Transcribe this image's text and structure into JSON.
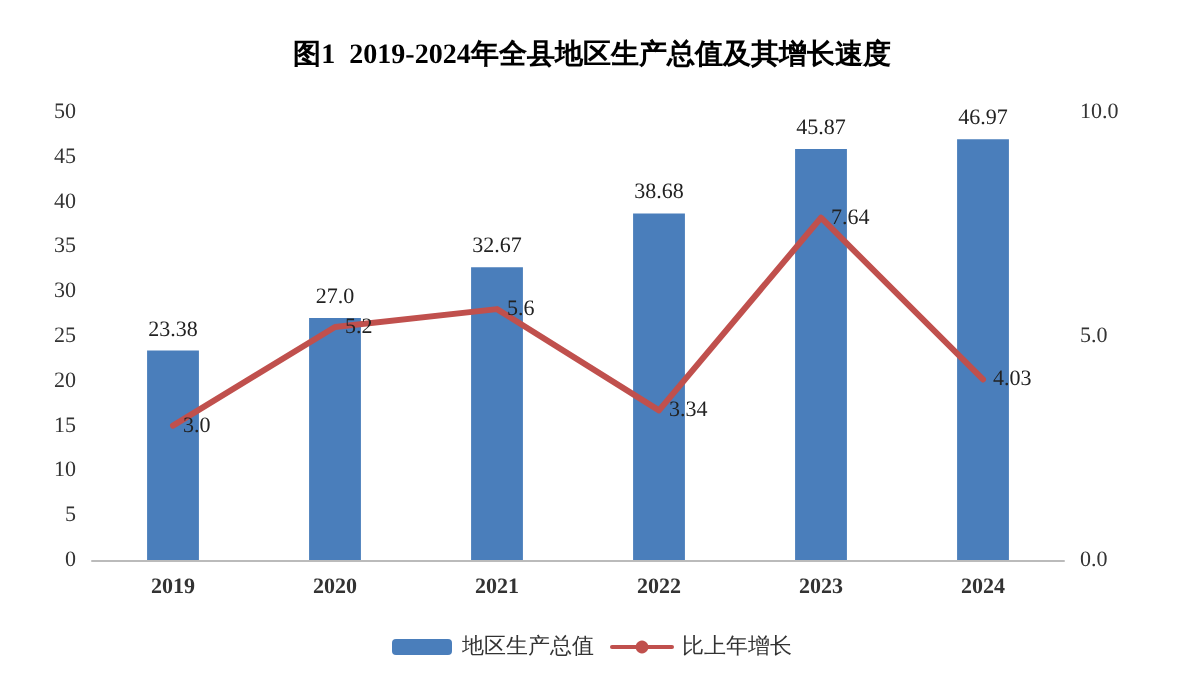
{
  "chart_data": {
    "type": "bar",
    "title": "图1  2019-2024年全县地区生产总值及其增长速度",
    "categories": [
      "2019",
      "2020",
      "2021",
      "2022",
      "2023",
      "2024"
    ],
    "series": [
      {
        "name": "地区生产总值",
        "color": "#4a7ebb",
        "values": [
          23.38,
          27.0,
          32.67,
          38.68,
          45.87,
          46.97
        ],
        "value_labels": [
          "23.38",
          "27.0",
          "32.67",
          "38.68",
          "45.87",
          "46.97"
        ]
      },
      {
        "name": "比上年增长",
        "type": "line",
        "axis": "y2",
        "color": "#c0504d",
        "values": [
          3.0,
          5.2,
          5.6,
          3.34,
          7.64,
          4.03
        ],
        "value_labels": [
          "3.0",
          "5.2",
          "5.6",
          "3.34",
          "7.64",
          "4.03"
        ]
      }
    ],
    "ylim": [
      0,
      50
    ],
    "yticks": [
      0,
      5,
      10,
      15,
      20,
      25,
      30,
      35,
      40,
      45,
      50
    ],
    "y2lim": [
      0,
      10
    ],
    "y2ticks": [
      {
        "value": 0,
        "label": "0.0"
      },
      {
        "value": 5,
        "label": "5.0"
      },
      {
        "value": 10,
        "label": "10.0"
      }
    ],
    "legend": "bottom",
    "marker": "none",
    "line_style": "solid"
  }
}
